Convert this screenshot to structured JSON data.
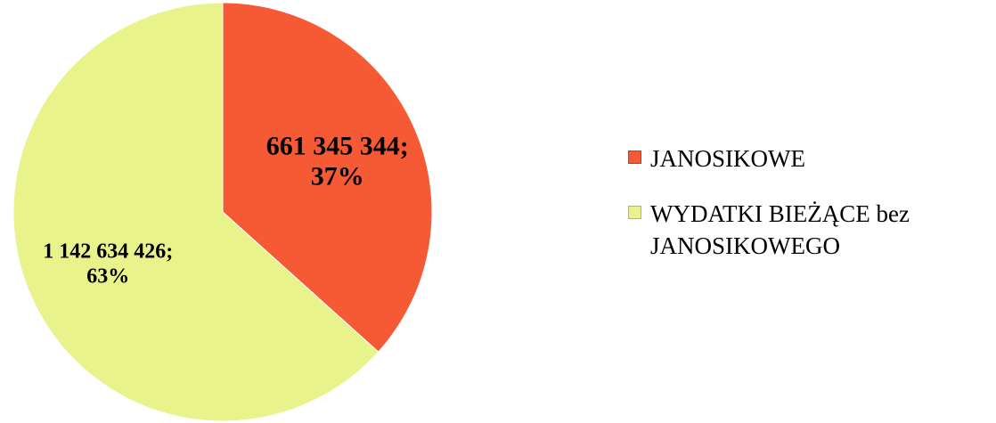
{
  "chart_data": {
    "type": "pie",
    "categories": [
      "JANOSIKOWE",
      "WYDATKI BIEŻĄCE bez JANOSIKOWEGO"
    ],
    "values": [
      661345344,
      1142634426
    ],
    "value_labels": [
      "661 345 344; 37%",
      "1 142 634 426; 63%"
    ],
    "colors": [
      "#f55a35",
      "#e8f38c"
    ]
  }
}
